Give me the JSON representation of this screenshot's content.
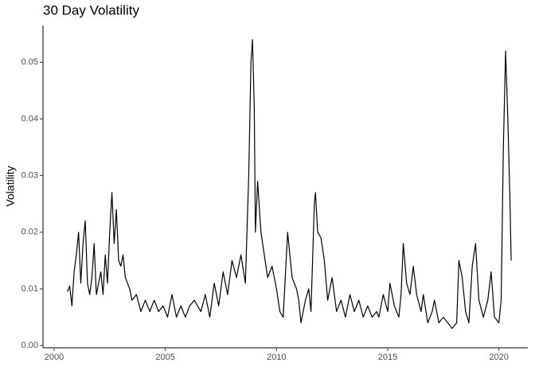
{
  "chart_data": {
    "type": "line",
    "title": "30 Day Volatility",
    "y_label": "Volatility",
    "color": "#000000",
    "x": [
      2000.6,
      2000.7,
      2000.8,
      2000.9,
      2001.0,
      2001.1,
      2001.2,
      2001.3,
      2001.4,
      2001.5,
      2001.6,
      2001.7,
      2001.8,
      2001.9,
      2002.0,
      2002.1,
      2002.2,
      2002.3,
      2002.4,
      2002.5,
      2002.6,
      2002.7,
      2002.8,
      2002.9,
      2003.0,
      2003.1,
      2003.2,
      2003.4,
      2003.5,
      2003.7,
      2003.9,
      2004.1,
      2004.3,
      2004.5,
      2004.7,
      2004.9,
      2005.1,
      2005.3,
      2005.5,
      2005.7,
      2005.9,
      2006.1,
      2006.3,
      2006.6,
      2006.8,
      2007.0,
      2007.2,
      2007.4,
      2007.6,
      2007.8,
      2008.0,
      2008.2,
      2008.4,
      2008.6,
      2008.75,
      2008.85,
      2008.92,
      2009.0,
      2009.05,
      2009.15,
      2009.3,
      2009.45,
      2009.6,
      2009.8,
      2010.0,
      2010.15,
      2010.3,
      2010.5,
      2010.7,
      2010.9,
      2011.0,
      2011.1,
      2011.3,
      2011.45,
      2011.55,
      2011.7,
      2011.75,
      2011.85,
      2012.0,
      2012.15,
      2012.3,
      2012.5,
      2012.7,
      2012.9,
      2013.1,
      2013.3,
      2013.5,
      2013.7,
      2013.9,
      2014.1,
      2014.3,
      2014.5,
      2014.6,
      2014.8,
      2015.0,
      2015.1,
      2015.3,
      2015.5,
      2015.6,
      2015.7,
      2015.85,
      2016.0,
      2016.15,
      2016.3,
      2016.5,
      2016.6,
      2016.8,
      2017.0,
      2017.1,
      2017.3,
      2017.5,
      2017.7,
      2017.9,
      2018.1,
      2018.2,
      2018.35,
      2018.5,
      2018.65,
      2018.8,
      2018.95,
      2019.1,
      2019.3,
      2019.5,
      2019.65,
      2019.8,
      2020.0,
      2020.1,
      2020.2,
      2020.3,
      2020.4,
      2020.5,
      2020.55
    ],
    "values": [
      0.0095,
      0.0105,
      0.007,
      0.013,
      0.016,
      0.02,
      0.011,
      0.018,
      0.022,
      0.011,
      0.009,
      0.012,
      0.018,
      0.009,
      0.011,
      0.013,
      0.009,
      0.016,
      0.011,
      0.02,
      0.027,
      0.018,
      0.024,
      0.015,
      0.014,
      0.016,
      0.012,
      0.01,
      0.008,
      0.009,
      0.006,
      0.008,
      0.006,
      0.008,
      0.006,
      0.007,
      0.005,
      0.009,
      0.005,
      0.007,
      0.005,
      0.007,
      0.008,
      0.006,
      0.009,
      0.005,
      0.011,
      0.007,
      0.013,
      0.009,
      0.015,
      0.012,
      0.016,
      0.011,
      0.03,
      0.05,
      0.054,
      0.042,
      0.02,
      0.029,
      0.02,
      0.016,
      0.012,
      0.014,
      0.01,
      0.006,
      0.005,
      0.02,
      0.012,
      0.01,
      0.008,
      0.004,
      0.008,
      0.01,
      0.006,
      0.025,
      0.027,
      0.02,
      0.019,
      0.015,
      0.008,
      0.012,
      0.006,
      0.008,
      0.005,
      0.009,
      0.006,
      0.008,
      0.005,
      0.007,
      0.005,
      0.006,
      0.005,
      0.009,
      0.006,
      0.011,
      0.007,
      0.005,
      0.009,
      0.018,
      0.011,
      0.009,
      0.014,
      0.009,
      0.006,
      0.009,
      0.004,
      0.006,
      0.008,
      0.004,
      0.005,
      0.004,
      0.003,
      0.004,
      0.015,
      0.012,
      0.006,
      0.004,
      0.014,
      0.018,
      0.008,
      0.005,
      0.008,
      0.013,
      0.005,
      0.004,
      0.008,
      0.035,
      0.052,
      0.04,
      0.025,
      0.015
    ],
    "xlim": [
      1999.5,
      2021.3
    ],
    "ylim": [
      -0.0004,
      0.0565
    ],
    "xticks": [
      2000,
      2005,
      2010,
      2015,
      2020
    ],
    "yticks": [
      {
        "value": 0,
        "label": "0.00"
      },
      0.01,
      0.02,
      0.03,
      0.04,
      0.05
    ]
  }
}
